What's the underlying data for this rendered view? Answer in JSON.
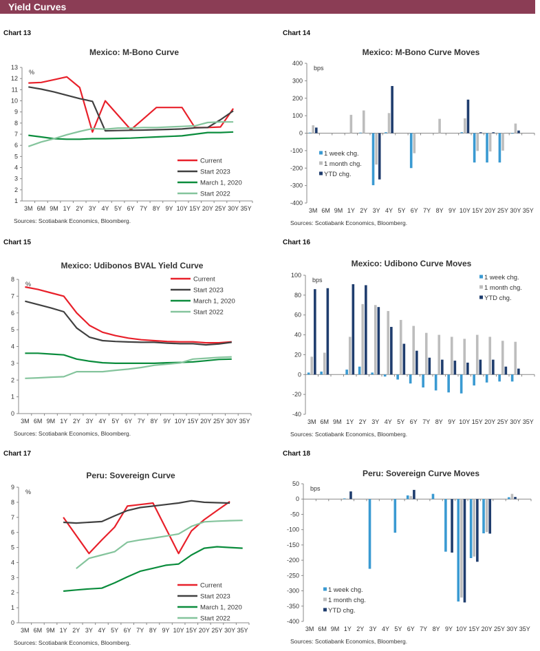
{
  "header": {
    "title": "Yield Curves"
  },
  "colors": {
    "current": "#e8202a",
    "start2023": "#404040",
    "march2020": "#0a8c3c",
    "start2022": "#84c49c",
    "week": "#3a9ad2",
    "month": "#bdbdbd",
    "ytd": "#1f3d6e",
    "header": "#8b3d55"
  },
  "chart_data": [
    {
      "label": "Chart 13",
      "type": "line",
      "title": "Mexico: M-Bono Curve",
      "unit": "%",
      "source": "Sources: Scotiabank Economics, Bloomberg.",
      "categories": [
        "3M",
        "6M",
        "9M",
        "1Y",
        "2Y",
        "3Y",
        "4Y",
        "5Y",
        "6Y",
        "7Y",
        "8Y",
        "9Y",
        "10Y",
        "15Y",
        "20Y",
        "25Y",
        "30Y",
        "35Y"
      ],
      "ylim": [
        1,
        13
      ],
      "ystep": 1,
      "legend": "bottom-right",
      "series": [
        {
          "name": "Current",
          "color": "#e8202a",
          "values": [
            11.6,
            11.65,
            11.9,
            12.15,
            11.2,
            7.2,
            10.0,
            8.7,
            7.4,
            8.4,
            9.4,
            9.4,
            9.4,
            7.6,
            7.6,
            7.65,
            9.3,
            null
          ]
        },
        {
          "name": "Start 2023",
          "color": "#404040",
          "values": [
            11.25,
            11.05,
            10.8,
            10.5,
            10.2,
            9.95,
            7.3,
            7.33,
            7.35,
            7.37,
            7.4,
            7.43,
            7.47,
            7.57,
            7.6,
            8.3,
            9.1,
            null
          ]
        },
        {
          "name": "March 1, 2020",
          "color": "#0a8c3c",
          "values": [
            6.9,
            6.75,
            6.6,
            6.55,
            6.55,
            6.6,
            6.6,
            6.62,
            6.65,
            6.7,
            6.75,
            6.8,
            6.85,
            7.0,
            7.15,
            7.15,
            7.2,
            null
          ]
        },
        {
          "name": "Start 2022",
          "color": "#84c49c",
          "values": [
            5.9,
            6.3,
            6.6,
            6.95,
            7.25,
            7.5,
            7.45,
            7.55,
            7.55,
            7.6,
            7.6,
            7.65,
            7.7,
            7.75,
            8.05,
            8.1,
            8.1,
            null
          ]
        }
      ]
    },
    {
      "label": "Chart 14",
      "type": "bar",
      "title": "Mexico: M-Bono Curve Moves",
      "unit": "bps",
      "source": "Sources: Scotiabank Economics, Bloomberg.",
      "categories": [
        "3M",
        "6M",
        "9M",
        "1Y",
        "2Y",
        "3Y",
        "4Y",
        "5Y",
        "6Y",
        "7Y",
        "8Y",
        "9Y",
        "10Y",
        "15Y",
        "20Y",
        "25Y",
        "30Y",
        "35Y"
      ],
      "ylim": [
        -400,
        400
      ],
      "ystep": 100,
      "legend": "left-middle",
      "series": [
        {
          "name": "1 week chg.",
          "color": "#3a9ad2",
          "values": [
            3,
            0,
            0,
            0,
            3,
            -298,
            5,
            0,
            -200,
            0,
            0,
            0,
            5,
            -168,
            -168,
            -168,
            -3,
            0
          ]
        },
        {
          "name": "1 month chg.",
          "color": "#bdbdbd",
          "values": [
            45,
            0,
            0,
            105,
            130,
            -180,
            115,
            0,
            -115,
            0,
            82,
            0,
            85,
            -102,
            -105,
            -100,
            55,
            0
          ]
        },
        {
          "name": "YTD chg.",
          "color": "#1f3d6e",
          "values": [
            32,
            0,
            0,
            0,
            0,
            -265,
            270,
            0,
            0,
            0,
            0,
            0,
            192,
            5,
            5,
            0,
            15,
            0
          ]
        }
      ]
    },
    {
      "label": "Chart 15",
      "type": "line",
      "title": "Mexico: Udibonos  BVAL Yield Curve",
      "unit": "%",
      "source": "Sources: Scotiabank Economics, Bloomberg.",
      "categories": [
        "3M",
        "6M",
        "9M",
        "1Y",
        "2Y",
        "3Y",
        "4Y",
        "5Y",
        "6Y",
        "7Y",
        "8Y",
        "9Y",
        "10Y",
        "15Y",
        "20Y",
        "25Y",
        "30Y",
        "35Y"
      ],
      "ylim": [
        0,
        8
      ],
      "ystep": 1,
      "legend": "top-right",
      "series": [
        {
          "name": "Current",
          "color": "#e8202a",
          "values": [
            7.55,
            7.4,
            7.2,
            7.0,
            6.0,
            5.25,
            4.85,
            4.65,
            4.5,
            4.4,
            4.35,
            4.3,
            4.28,
            4.28,
            4.22,
            4.22,
            4.28,
            null
          ]
        },
        {
          "name": "Start 2023",
          "color": "#404040",
          "values": [
            6.7,
            6.5,
            6.3,
            6.07,
            5.1,
            4.55,
            4.35,
            4.3,
            4.27,
            4.25,
            4.25,
            4.2,
            4.17,
            4.17,
            4.1,
            4.15,
            4.25,
            null
          ]
        },
        {
          "name": "March 1, 2020",
          "color": "#0a8c3c",
          "values": [
            3.6,
            3.6,
            3.55,
            3.5,
            3.25,
            3.12,
            3.03,
            3.0,
            3.0,
            3.0,
            3.0,
            3.03,
            3.05,
            3.08,
            3.15,
            3.23,
            3.25,
            null
          ]
        },
        {
          "name": "Start 2022",
          "color": "#84c49c",
          "values": [
            2.1,
            2.13,
            2.17,
            2.2,
            2.5,
            2.5,
            2.5,
            2.58,
            2.65,
            2.75,
            2.88,
            2.95,
            3.02,
            3.25,
            3.3,
            3.35,
            3.38,
            null
          ]
        }
      ]
    },
    {
      "label": "Chart 16",
      "type": "bar",
      "title": "Mexico: Udibono  Curve Moves",
      "unit": "bps",
      "source": "Sources: Scotiabank Economics, Bloomberg.",
      "categories": [
        "3M",
        "6M",
        "9M",
        "1Y",
        "2Y",
        "3Y",
        "4Y",
        "5Y",
        "6Y",
        "7Y",
        "8Y",
        "9Y",
        "10Y",
        "15Y",
        "20Y",
        "25Y",
        "30Y",
        "35Y"
      ],
      "ylim": [
        -40,
        100
      ],
      "ystep": 20,
      "legend": "top-right",
      "series": [
        {
          "name": "1 week chg.",
          "color": "#3a9ad2",
          "values": [
            2,
            3,
            0,
            5,
            8,
            2,
            -2,
            -5,
            -9,
            -13,
            -16,
            -18,
            -19,
            -11,
            -8,
            -7,
            -7,
            0
          ]
        },
        {
          "name": "1 month chg.",
          "color": "#bdbdbd",
          "values": [
            18,
            22,
            0,
            38,
            71,
            70,
            64,
            55,
            49,
            42,
            40,
            38,
            36,
            40,
            38,
            34,
            33,
            0
          ]
        },
        {
          "name": "YTD chg.",
          "color": "#1f3d6e",
          "values": [
            86,
            87,
            0,
            91,
            90,
            68,
            48,
            31,
            24,
            17,
            15,
            14,
            12,
            15,
            15,
            8,
            6,
            0
          ]
        }
      ]
    },
    {
      "label": "Chart 17",
      "type": "line",
      "title": "Peru: Sovereign Curve",
      "unit": "%",
      "source": "Sources: Scotiabank Economics, Bloomberg.",
      "categories": [
        "3M",
        "6M",
        "9M",
        "1Y",
        "2Y",
        "3Y",
        "4Y",
        "5Y",
        "6Y",
        "7Y",
        "8Y",
        "9Y",
        "10Y",
        "15Y",
        "20Y",
        "25Y",
        "30Y",
        "35Y"
      ],
      "ylim": [
        0,
        9
      ],
      "ystep": 1,
      "legend": "bottom-right",
      "series": [
        {
          "name": "Current",
          "color": "#e8202a",
          "values": [
            null,
            null,
            null,
            7.0,
            null,
            4.6,
            5.5,
            6.35,
            7.75,
            7.85,
            7.95,
            null,
            4.6,
            6.1,
            6.85,
            7.45,
            8.05,
            null
          ]
        },
        {
          "name": "Start 2023",
          "color": "#404040",
          "values": [
            null,
            null,
            null,
            6.67,
            6.62,
            6.67,
            6.72,
            7.1,
            7.45,
            7.65,
            7.75,
            7.85,
            7.95,
            8.1,
            8.0,
            7.97,
            7.95,
            null
          ]
        },
        {
          "name": "March 1, 2020",
          "color": "#0a8c3c",
          "values": [
            null,
            null,
            null,
            2.1,
            2.18,
            2.25,
            2.3,
            2.65,
            3.05,
            3.42,
            3.62,
            3.82,
            3.9,
            4.5,
            4.95,
            5.05,
            5.0,
            4.95
          ]
        },
        {
          "name": "Start 2022",
          "color": "#84c49c",
          "values": [
            null,
            null,
            null,
            null,
            3.6,
            4.28,
            4.5,
            4.72,
            5.35,
            5.5,
            5.62,
            5.75,
            5.9,
            6.4,
            6.7,
            6.75,
            6.78,
            6.8
          ]
        }
      ]
    },
    {
      "label": "Chart 18",
      "type": "bar",
      "title": "Peru: Sovereign Curve Moves",
      "unit": "bps",
      "source": "Sources: Scotiabank Economics, Bloomberg.",
      "categories": [
        "3M",
        "6M",
        "9M",
        "1Y",
        "2Y",
        "3Y",
        "4Y",
        "5Y",
        "6Y",
        "7Y",
        "8Y",
        "9Y",
        "10Y",
        "15Y",
        "20Y",
        "25Y",
        "30Y",
        "35Y"
      ],
      "ylim": [
        -400,
        50
      ],
      "ystep": 50,
      "legend": "bottom-left",
      "series": [
        {
          "name": "1 week chg.",
          "color": "#3a9ad2",
          "values": [
            0,
            0,
            0,
            2,
            0,
            -228,
            0,
            -110,
            12,
            0,
            17,
            -172,
            -335,
            -193,
            -112,
            0,
            6,
            0
          ]
        },
        {
          "name": "1 month chg.",
          "color": "#bdbdbd",
          "values": [
            0,
            0,
            0,
            0,
            0,
            0,
            0,
            0,
            10,
            0,
            0,
            0,
            -322,
            -188,
            -108,
            0,
            17,
            0
          ]
        },
        {
          "name": "YTD chg.",
          "color": "#1f3d6e",
          "values": [
            0,
            0,
            0,
            25,
            0,
            0,
            0,
            0,
            30,
            0,
            0,
            -175,
            -338,
            -205,
            -113,
            0,
            7,
            0
          ]
        }
      ]
    }
  ]
}
